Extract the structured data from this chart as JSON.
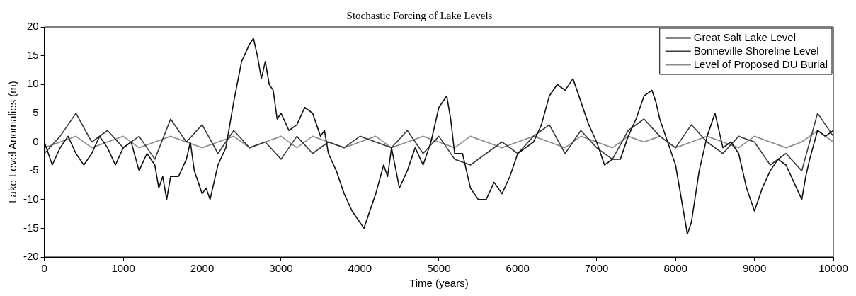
{
  "chart_data": {
    "type": "line",
    "title": "Stochastic Forcing of Lake Levels",
    "xlabel": "Time (years)",
    "ylabel": "Lake Level Anomalies (m)",
    "xlim": [
      0,
      10000
    ],
    "xticks": [
      0,
      1000,
      2000,
      3000,
      4000,
      5000,
      6000,
      7000,
      8000,
      9000,
      10000
    ],
    "ylim": [
      -20,
      20
    ],
    "yticks": [
      -20,
      -15,
      -10,
      -5,
      0,
      5,
      10,
      15,
      20
    ],
    "grid": false,
    "legend": "top right",
    "marker": "none",
    "line_style": "solid",
    "series": [
      {
        "name": "Great Salt Lake Level",
        "color": "#111111",
        "x": [
          0,
          100,
          200,
          300,
          400,
          500,
          600,
          700,
          800,
          900,
          1000,
          1100,
          1200,
          1300,
          1400,
          1450,
          1500,
          1550,
          1600,
          1700,
          1800,
          1850,
          1900,
          1950,
          2000,
          2050,
          2100,
          2150,
          2200,
          2300,
          2350,
          2400,
          2500,
          2600,
          2650,
          2700,
          2750,
          2800,
          2850,
          2900,
          2950,
          3000,
          3100,
          3200,
          3300,
          3400,
          3500,
          3550,
          3600,
          3700,
          3800,
          3900,
          4000,
          4050,
          4100,
          4200,
          4300,
          4350,
          4400,
          4500,
          4600,
          4700,
          4800,
          4900,
          5000,
          5100,
          5150,
          5200,
          5300,
          5400,
          5500,
          5600,
          5700,
          5800,
          5900,
          6000,
          6100,
          6200,
          6300,
          6400,
          6500,
          6600,
          6700,
          6800,
          6900,
          7000,
          7100,
          7200,
          7300,
          7400,
          7500,
          7600,
          7700,
          7750,
          7800,
          7900,
          8000,
          8050,
          8100,
          8150,
          8200,
          8300,
          8400,
          8500,
          8600,
          8700,
          8800,
          8900,
          9000,
          9100,
          9200,
          9300,
          9400,
          9500,
          9600,
          9650,
          9700,
          9800,
          9900,
          10000
        ],
        "values": [
          0,
          -4,
          -1,
          1,
          -2,
          -4,
          -2,
          1,
          -1,
          -4,
          -1,
          0,
          -5,
          -2,
          -4,
          -8,
          -6,
          -10,
          -6,
          -6,
          -3,
          0,
          -5,
          -7,
          -9,
          -8,
          -10,
          -7,
          -4,
          -1,
          3,
          7,
          14,
          17,
          18,
          15,
          11,
          14,
          10,
          9,
          4,
          5,
          2,
          3,
          6,
          5,
          1,
          2,
          -2,
          -5,
          -9,
          -12,
          -14,
          -15,
          -13,
          -9,
          -4,
          -6,
          -1,
          -8,
          -5,
          -1,
          -4,
          0,
          6,
          8,
          4,
          -2,
          -2,
          -8,
          -10,
          -10,
          -7,
          -9,
          -6,
          -2,
          -1,
          0,
          3,
          8,
          10,
          9,
          11,
          7,
          3,
          0,
          -4,
          -3,
          -3,
          1,
          4,
          8,
          9,
          7,
          4,
          0,
          -4,
          -8,
          -12,
          -16,
          -14,
          -5,
          1,
          5,
          -1,
          0,
          -2,
          -8,
          -12,
          -8,
          -5,
          -3,
          -4,
          -7,
          -10,
          -6,
          -3,
          2,
          1,
          2
        ]
      },
      {
        "name": "Bonneville Shoreline Level",
        "color": "#3a3a3a",
        "x": [
          0,
          200,
          400,
          600,
          800,
          1000,
          1200,
          1400,
          1600,
          1800,
          2000,
          2200,
          2400,
          2600,
          2800,
          3000,
          3200,
          3400,
          3600,
          3800,
          4000,
          4200,
          4400,
          4600,
          4800,
          5000,
          5200,
          5400,
          5600,
          5800,
          6000,
          6200,
          6400,
          6600,
          6800,
          7000,
          7200,
          7400,
          7600,
          7800,
          8000,
          8200,
          8400,
          8600,
          8800,
          9000,
          9200,
          9400,
          9600,
          9800,
          10000
        ],
        "values": [
          -2,
          1,
          5,
          0,
          2,
          -1,
          1,
          -3,
          4,
          0,
          3,
          -2,
          2,
          -1,
          0,
          -3,
          1,
          -2,
          0,
          -1,
          1,
          0,
          -1,
          2,
          -2,
          1,
          -3,
          -4,
          -2,
          0,
          -2,
          1,
          3,
          -2,
          2,
          -1,
          -3,
          2,
          4,
          1,
          -1,
          3,
          0,
          -2,
          1,
          0,
          -4,
          -2,
          -5,
          5,
          1
        ]
      },
      {
        "name": "Level of Proposed DU Burial",
        "color": "#8c8c8c",
        "x": [
          0,
          200,
          400,
          600,
          800,
          1000,
          1200,
          1400,
          1600,
          1800,
          2000,
          2200,
          2400,
          2600,
          2800,
          3000,
          3200,
          3400,
          3600,
          3800,
          4000,
          4200,
          4400,
          4600,
          4800,
          5000,
          5200,
          5400,
          5600,
          5800,
          6000,
          6200,
          6400,
          6600,
          6800,
          7000,
          7200,
          7400,
          7600,
          7800,
          8000,
          8200,
          8400,
          8600,
          8800,
          9000,
          9200,
          9400,
          9600,
          9800,
          10000
        ],
        "values": [
          -1,
          0,
          1,
          -1,
          0,
          1,
          -1,
          0,
          1,
          0,
          -1,
          0,
          1,
          -1,
          0,
          1,
          -1,
          1,
          0,
          -1,
          0,
          1,
          -1,
          0,
          1,
          0,
          -1,
          1,
          0,
          -1,
          0,
          1,
          0,
          -1,
          1,
          0,
          -1,
          1,
          0,
          1,
          -1,
          0,
          1,
          0,
          -1,
          1,
          0,
          -1,
          0,
          2,
          0
        ]
      }
    ]
  }
}
